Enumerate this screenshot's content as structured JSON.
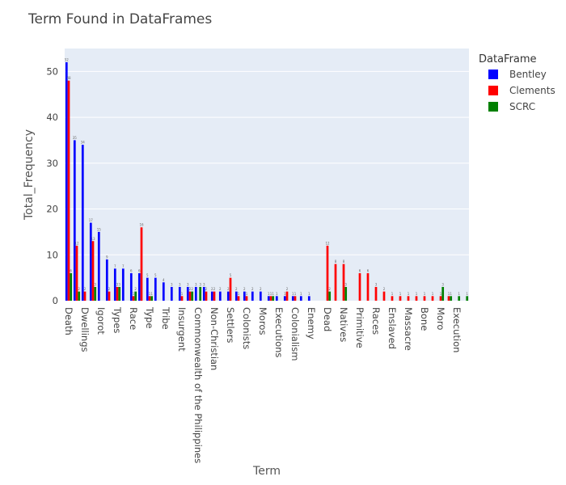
{
  "chart_data": {
    "type": "bar",
    "title": "Term Found in DataFrames",
    "xlabel": "Term",
    "ylabel": "Total_Frequency",
    "ylim": [
      0,
      55
    ],
    "yticks": [
      0,
      10,
      20,
      30,
      40,
      50
    ],
    "grid": true,
    "legend": {
      "title": "DataFrame",
      "placement": "top-right"
    },
    "categories": [
      "Death",
      "",
      "Dwellings",
      "",
      "Igorot",
      "",
      "Types",
      "",
      "Race",
      "",
      "Type",
      "",
      "Tribe",
      "",
      "Insurgent",
      "",
      "Commonwealth of the Philippines",
      "",
      "Non-Christian",
      "",
      "Settlers",
      "",
      "Colonists",
      "",
      "Moros",
      "",
      "Executions",
      "",
      "Colonialism",
      "",
      "Enemy",
      "",
      "Dead",
      "",
      "Natives",
      "",
      "Primitive",
      "",
      "Races",
      "",
      "Enslaved",
      "",
      "Massacre",
      "",
      "Bone",
      "",
      "Moro",
      "",
      "Execution",
      ""
    ],
    "series": [
      {
        "name": "Bentley",
        "color": "#0000ff",
        "values": [
          52,
          35,
          34,
          17,
          15,
          9,
          7,
          7,
          6,
          6,
          5,
          5,
          4,
          3,
          3,
          3,
          3,
          3,
          2,
          2,
          2,
          2,
          2,
          2,
          2,
          1,
          1,
          1,
          1,
          1,
          1,
          0,
          0,
          0,
          0,
          0,
          0,
          0,
          0,
          0,
          0,
          0,
          0,
          0,
          0,
          0,
          0,
          0,
          0,
          0
        ]
      },
      {
        "name": "Clements",
        "color": "#ff0000",
        "values": [
          48,
          12,
          2,
          13,
          0,
          2,
          3,
          0,
          1,
          16,
          1,
          0,
          0,
          0,
          1,
          2,
          0,
          2,
          2,
          0,
          5,
          1,
          1,
          0,
          0,
          1,
          0,
          2,
          1,
          0,
          0,
          0,
          12,
          8,
          8,
          0,
          6,
          6,
          3,
          2,
          1,
          1,
          1,
          1,
          1,
          1,
          1,
          1,
          0,
          0
        ]
      },
      {
        "name": "SCRC",
        "color": "#008000",
        "values": [
          6,
          2,
          0,
          3,
          0,
          0,
          3,
          0,
          2,
          0,
          1,
          0,
          0,
          0,
          0,
          2,
          3,
          0,
          0,
          0,
          0,
          0,
          0,
          0,
          0,
          1,
          0,
          0,
          0,
          0,
          0,
          0,
          2,
          0,
          3,
          0,
          0,
          0,
          0,
          0,
          0,
          0,
          0,
          0,
          0,
          0,
          3,
          1,
          1,
          1
        ]
      }
    ]
  }
}
